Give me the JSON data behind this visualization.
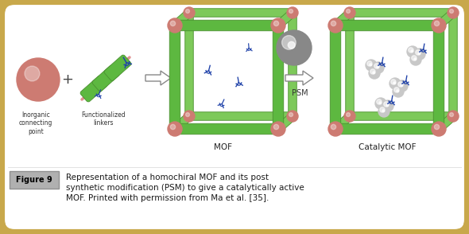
{
  "figure_label": "Figure 9",
  "caption_line1": "Representation of a homochiral MOF and its post",
  "caption_line2": "synthetic modification (PSM) to give a catalytically active",
  "caption_line3": "MOF. Printed with permission from Ma et al. [35].",
  "outer_border_color": "#c8a84b",
  "inner_bg_color": "#ffffff",
  "figure_label_bg": "#b0b0b0",
  "figure_label_color": "#000000",
  "caption_color": "#1a1a1a",
  "pink_sphere": "#cd7b72",
  "green_bar": "#5db840",
  "green_bar_dark": "#4a9030",
  "green_bar_back": "#7dc95a",
  "pink_rod": "#e8a0a0",
  "fig_width": 5.9,
  "fig_height": 2.94,
  "dpi": 100
}
